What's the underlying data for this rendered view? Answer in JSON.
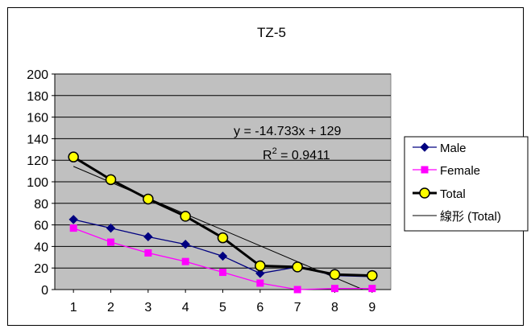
{
  "chart_data": {
    "type": "line",
    "title": "TZ-5",
    "xlabel": "",
    "ylabel": "",
    "x": [
      1,
      2,
      3,
      4,
      5,
      6,
      7,
      8,
      9
    ],
    "xlim": [
      0.5,
      9.5
    ],
    "ylim": [
      0,
      200
    ],
    "ytick_step": 20,
    "grid": "horizontal",
    "plot_background": "#c0c0c0",
    "legend_position": "right",
    "series": [
      {
        "name": "Male",
        "color": "#000080",
        "marker": "diamond",
        "values": [
          65,
          57,
          49,
          42,
          31,
          15,
          21,
          13,
          12
        ]
      },
      {
        "name": "Female",
        "color": "#ff00ff",
        "marker": "square",
        "values": [
          57,
          44,
          34,
          26,
          16,
          6,
          0,
          1,
          1
        ]
      },
      {
        "name": "Total",
        "color": "#000000",
        "marker": "circle",
        "marker_fill": "#ffff00",
        "values": [
          123,
          102,
          84,
          68,
          48,
          22,
          21,
          14,
          13
        ]
      }
    ],
    "trendline": {
      "name": "線形 (Total)",
      "slope": -14.733,
      "intercept": 129,
      "equation": "y = -14.733x + 129",
      "r2_label": "R",
      "r2_sup": "2",
      "r2_value": " = 0.9411"
    }
  }
}
